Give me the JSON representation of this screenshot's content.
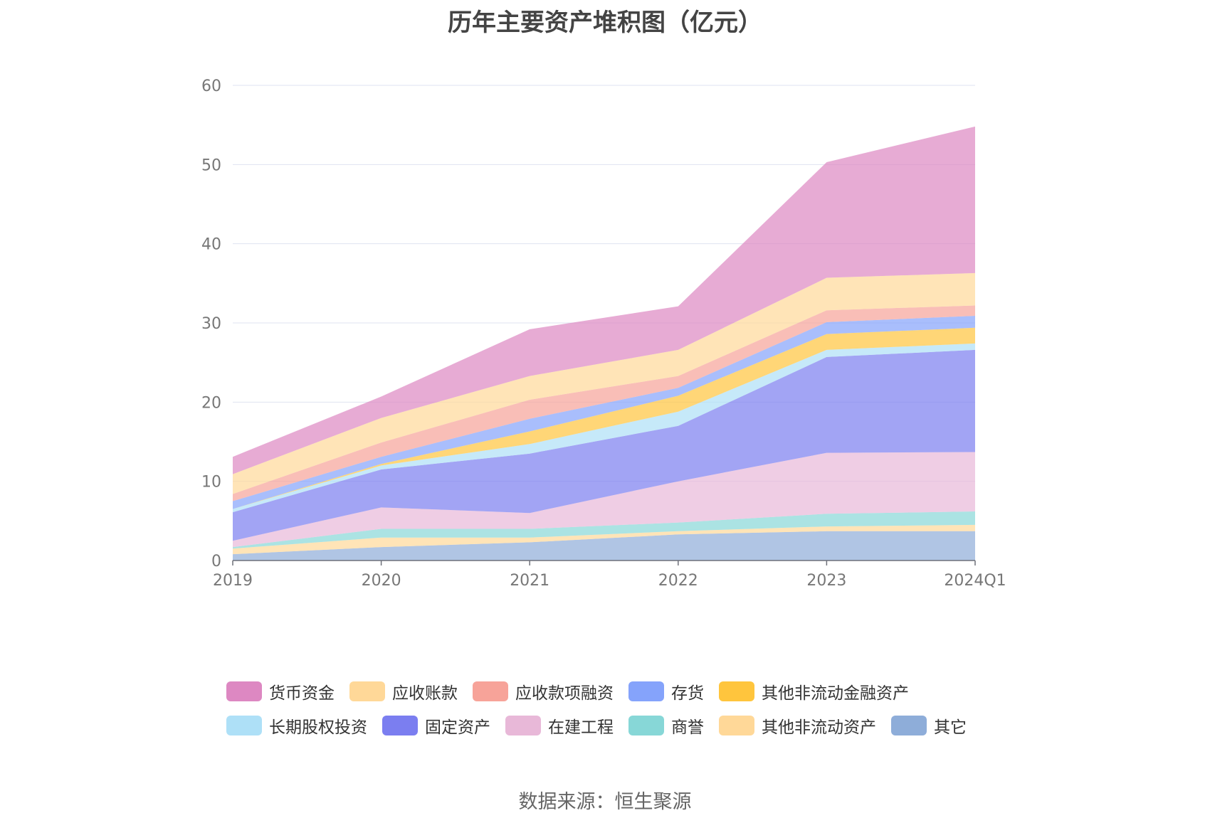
{
  "chart_data": {
    "type": "area",
    "stacked": true,
    "title": "历年主要资产堆积图（亿元）",
    "categories": [
      "2019",
      "2020",
      "2021",
      "2022",
      "2023",
      "2024Q1"
    ],
    "ylim": [
      0,
      60
    ],
    "yticks": [
      0,
      10,
      20,
      30,
      40,
      50,
      60
    ],
    "grid": true,
    "legend_position": "bottom",
    "series": [
      {
        "name": "其它",
        "color": "#8eadd9",
        "values": [
          0.8,
          1.7,
          2.3,
          3.3,
          3.7,
          3.7
        ]
      },
      {
        "name": "其他非流动资产",
        "color": "#ffd898",
        "values": [
          0.7,
          1.2,
          0.6,
          0.4,
          0.6,
          0.8
        ]
      },
      {
        "name": "商誉",
        "color": "#87d7d7",
        "values": [
          0.2,
          1.1,
          1.1,
          1.1,
          1.6,
          1.7
        ]
      },
      {
        "name": "在建工程",
        "color": "#e8b8d8",
        "values": [
          0.8,
          2.7,
          2.0,
          5.2,
          7.7,
          7.5
        ]
      },
      {
        "name": "固定资产",
        "color": "#7b7ef0",
        "values": [
          3.6,
          4.8,
          7.5,
          7.0,
          12.1,
          12.9
        ]
      },
      {
        "name": "长期股权投资",
        "color": "#aee0f7",
        "values": [
          0.4,
          0.5,
          1.2,
          1.8,
          0.9,
          0.8
        ]
      },
      {
        "name": "其他非流动金融资产",
        "color": "#ffc53d",
        "values": [
          0.0,
          0.2,
          1.6,
          2.0,
          2.0,
          2.0
        ]
      },
      {
        "name": "存货",
        "color": "#85a3fb",
        "values": [
          1.0,
          0.9,
          1.6,
          1.0,
          1.5,
          1.5
        ]
      },
      {
        "name": "应收款项融资",
        "color": "#f7a399",
        "values": [
          0.9,
          1.8,
          2.4,
          1.5,
          1.5,
          1.3
        ]
      },
      {
        "name": "应收账款",
        "color": "#ffd898",
        "values": [
          2.5,
          3.1,
          3.0,
          3.3,
          4.1,
          4.1
        ]
      },
      {
        "name": "货币资金",
        "color": "#dd88c2",
        "values": [
          2.2,
          2.7,
          5.9,
          5.5,
          14.6,
          18.5
        ]
      }
    ]
  },
  "legend": {
    "rows": [
      [
        {
          "label": "货币资金",
          "color": "#dd88c2"
        },
        {
          "label": "应收账款",
          "color": "#ffd898"
        },
        {
          "label": "应收款项融资",
          "color": "#f7a399"
        },
        {
          "label": "存货",
          "color": "#85a3fb"
        },
        {
          "label": "其他非流动金融资产",
          "color": "#ffc53d"
        }
      ],
      [
        {
          "label": "长期股权投资",
          "color": "#aee0f7"
        },
        {
          "label": "固定资产",
          "color": "#7b7ef0"
        },
        {
          "label": "在建工程",
          "color": "#e8b8d8"
        },
        {
          "label": "商誉",
          "color": "#87d7d7"
        },
        {
          "label": "其他非流动资产",
          "color": "#ffd898"
        },
        {
          "label": "其它",
          "color": "#8eadd9"
        }
      ]
    ]
  },
  "source": "数据来源：恒生聚源"
}
